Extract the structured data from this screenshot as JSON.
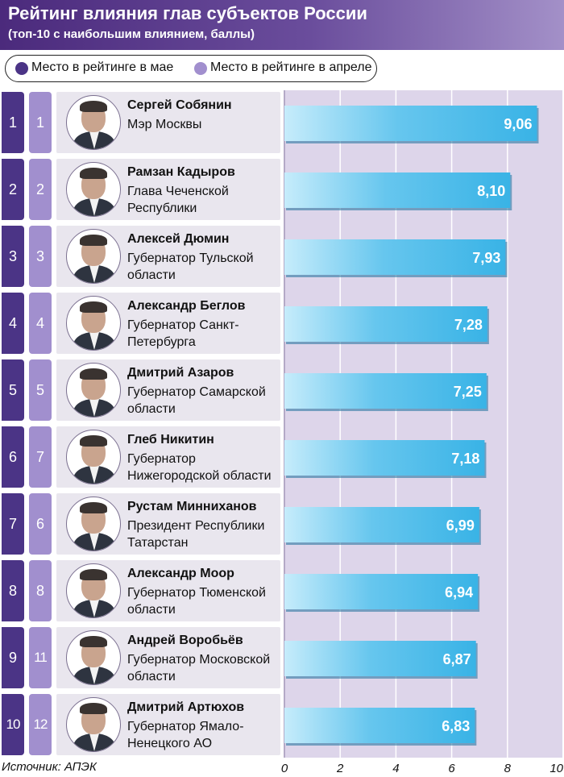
{
  "title": "Рейтинг влияния глав субъектов России",
  "subtitle": "(топ-10 с наибольшим влиянием, баллы)",
  "legend": {
    "may": "Место в рейтинге в мае",
    "april": "Место в рейтинге в апреле"
  },
  "source": "Источник: АПЭК",
  "colors": {
    "header": "#4b2a7c",
    "may_rank": "#4b3486",
    "april_rank": "#a18fce",
    "bar": "#39b3e6",
    "plot_background": "#ddd5ea"
  },
  "rows": [
    {
      "rank_may": "1",
      "rank_april": "1",
      "name": "Сергей Собянин",
      "position": "Мэр Москвы",
      "value_label": "9,06"
    },
    {
      "rank_may": "2",
      "rank_april": "2",
      "name": "Рамзан Кадыров",
      "position": "Глава Чеченской Республики",
      "value_label": "8,10"
    },
    {
      "rank_may": "3",
      "rank_april": "3",
      "name": "Алексей Дюмин",
      "position": "Губернатор Тульской области",
      "value_label": "7,93"
    },
    {
      "rank_may": "4",
      "rank_april": "4",
      "name": "Александр Беглов",
      "position": "Губернатор Санкт-Петербурга",
      "value_label": "7,28"
    },
    {
      "rank_may": "5",
      "rank_april": "5",
      "name": "Дмитрий Азаров",
      "position": "Губернатор Самарской области",
      "value_label": "7,25"
    },
    {
      "rank_may": "6",
      "rank_april": "7",
      "name": "Глеб Никитин",
      "position": "Губернатор Нижегородской области",
      "value_label": "7,18"
    },
    {
      "rank_may": "7",
      "rank_april": "6",
      "name": "Рустам Минниханов",
      "position": "Президент Республики Татарстан",
      "value_label": "6,99"
    },
    {
      "rank_may": "8",
      "rank_april": "8",
      "name": "Александр Моор",
      "position": "Губернатор Тюменской области",
      "value_label": "6,94"
    },
    {
      "rank_may": "9",
      "rank_april": "11",
      "name": "Андрей Воробьёв",
      "position": "Губернатор Московской области",
      "value_label": "6,87"
    },
    {
      "rank_may": "10",
      "rank_april": "12",
      "name": "Дмитрий Артюхов",
      "position": "Губернатор Ямало-Ненецкого АО",
      "value_label": "6,83"
    }
  ],
  "chart_data": {
    "type": "bar",
    "orientation": "horizontal",
    "categories": [
      "Сергей Собянин",
      "Рамзан Кадыров",
      "Алексей Дюмин",
      "Александр Беглов",
      "Дмитрий Азаров",
      "Глеб Никитин",
      "Рустам Минниханов",
      "Александр Моор",
      "Андрей Воробьёв",
      "Дмитрий Артюхов"
    ],
    "values": [
      9.06,
      8.1,
      7.93,
      7.28,
      7.25,
      7.18,
      6.99,
      6.94,
      6.87,
      6.83
    ],
    "title": "Рейтинг влияния глав субъектов России",
    "subtitle": "(топ-10 с наибольшим влиянием, баллы)",
    "xlim": [
      0,
      10
    ],
    "xticks": [
      0,
      2,
      4,
      6,
      8,
      10
    ],
    "xtick_labels": [
      "0",
      "2",
      "4",
      "6",
      "8",
      "10"
    ],
    "grid": true
  }
}
